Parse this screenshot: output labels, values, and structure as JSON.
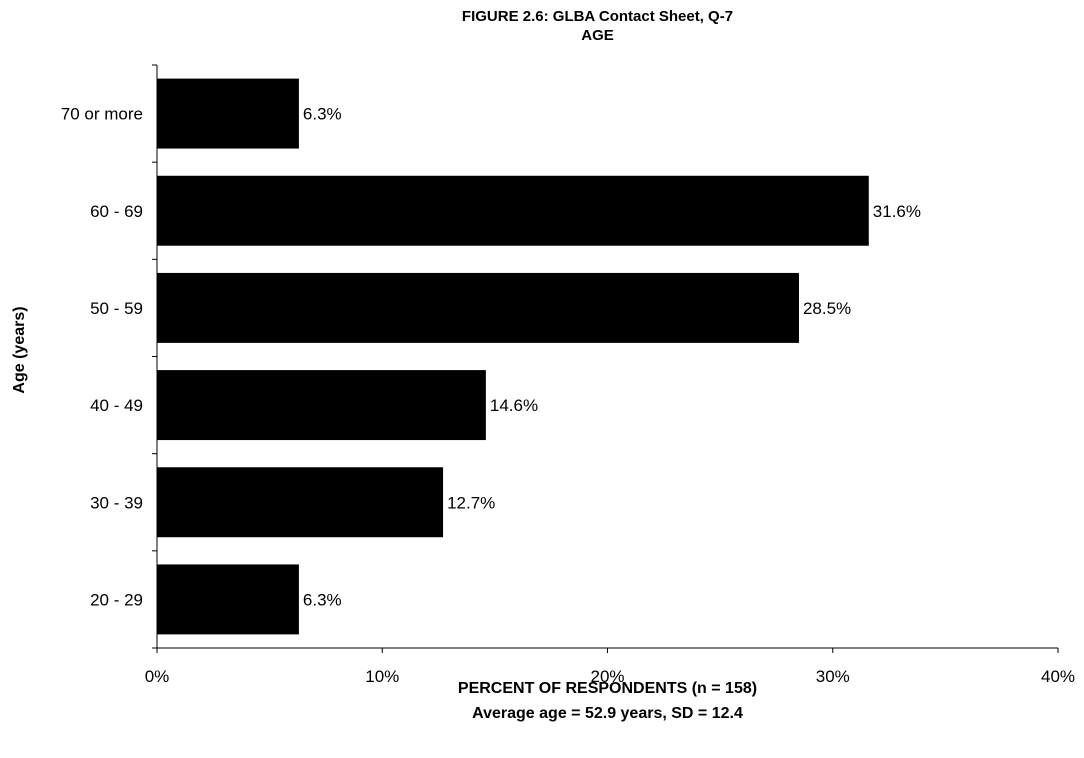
{
  "chart_data": {
    "type": "bar",
    "orientation": "horizontal",
    "title": "FIGURE 2.6: GLBA Contact Sheet, Q-7",
    "subtitle": "AGE",
    "xlabel": "PERCENT OF RESPONDENTS (n = 158)",
    "xlabel_note": "Average age = 52.9 years, SD = 12.4",
    "ylabel": "Age (years)",
    "categories": [
      "70 or more",
      "60 - 69",
      "50 - 59",
      "40 - 49",
      "30 - 39",
      "20 - 29"
    ],
    "values": [
      6.3,
      31.6,
      28.5,
      14.6,
      12.7,
      6.3
    ],
    "value_labels": [
      "6.3%",
      "31.6%",
      "28.5%",
      "14.6%",
      "12.7%",
      "6.3%"
    ],
    "xlim": [
      0,
      40
    ],
    "xticks": [
      0,
      10,
      20,
      30,
      40
    ],
    "xtick_labels": [
      "0%",
      "10%",
      "20%",
      "30%",
      "40%"
    ],
    "bar_color": "#000000",
    "grid": false,
    "legend": "none"
  }
}
